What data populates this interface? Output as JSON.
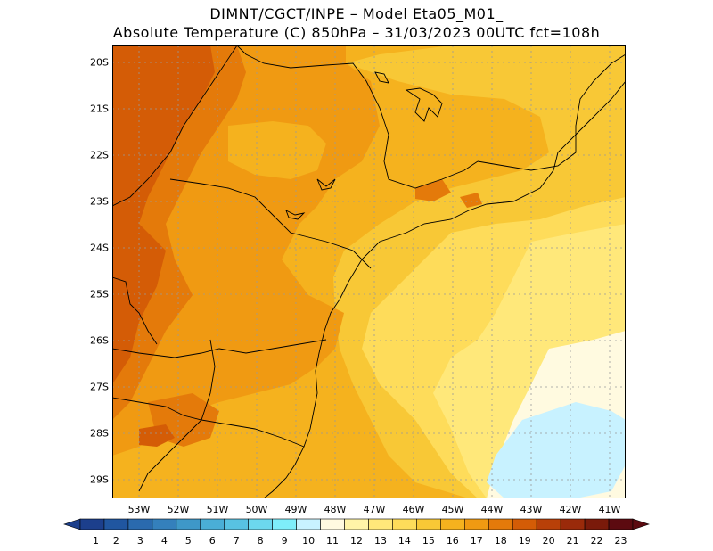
{
  "title": {
    "line1": "DIMNT/CGCT/INPE –   Model Eta05_M01_",
    "line2": "Absolute Temperature (C) 850hPa –   31/03/2023 00UTC fct=108h"
  },
  "map": {
    "lat_labels": [
      "20S",
      "21S",
      "22S",
      "23S",
      "24S",
      "25S",
      "26S",
      "27S",
      "28S",
      "29S"
    ],
    "lon_labels": [
      "53W",
      "52W",
      "51W",
      "50W",
      "49W",
      "48W",
      "47W",
      "46W",
      "45W",
      "44W",
      "43W",
      "42W",
      "41W"
    ]
  },
  "colorbar": {
    "labels": [
      "1",
      "2",
      "3",
      "4",
      "5",
      "6",
      "7",
      "8",
      "9",
      "10",
      "11",
      "12",
      "13",
      "14",
      "15",
      "16",
      "17",
      "18",
      "19",
      "20",
      "21",
      "22",
      "23"
    ],
    "colors": [
      "#1c3f8c",
      "#2056a0",
      "#2a6aae",
      "#3480bc",
      "#3e98c8",
      "#4aaed6",
      "#58c2e2",
      "#6cd8ee",
      "#7eeefa",
      "#c8f2ff",
      "#fffae0",
      "#fff4a8",
      "#ffe87a",
      "#fedc5a",
      "#f8c836",
      "#f5b21e",
      "#f09a12",
      "#e47a0a",
      "#d45c06",
      "#b84008",
      "#9a2a0a",
      "#7a1a0a",
      "#5c0a10"
    ]
  },
  "field_colors": {
    "t11": "#fffae0",
    "t10": "#c8f2ff",
    "t13": "#ffe87a",
    "t14": "#fedc5a",
    "t15": "#f8c836",
    "t16": "#f5b21e",
    "t17": "#f09a12",
    "t18": "#e47a0a",
    "t19": "#d45c06"
  }
}
